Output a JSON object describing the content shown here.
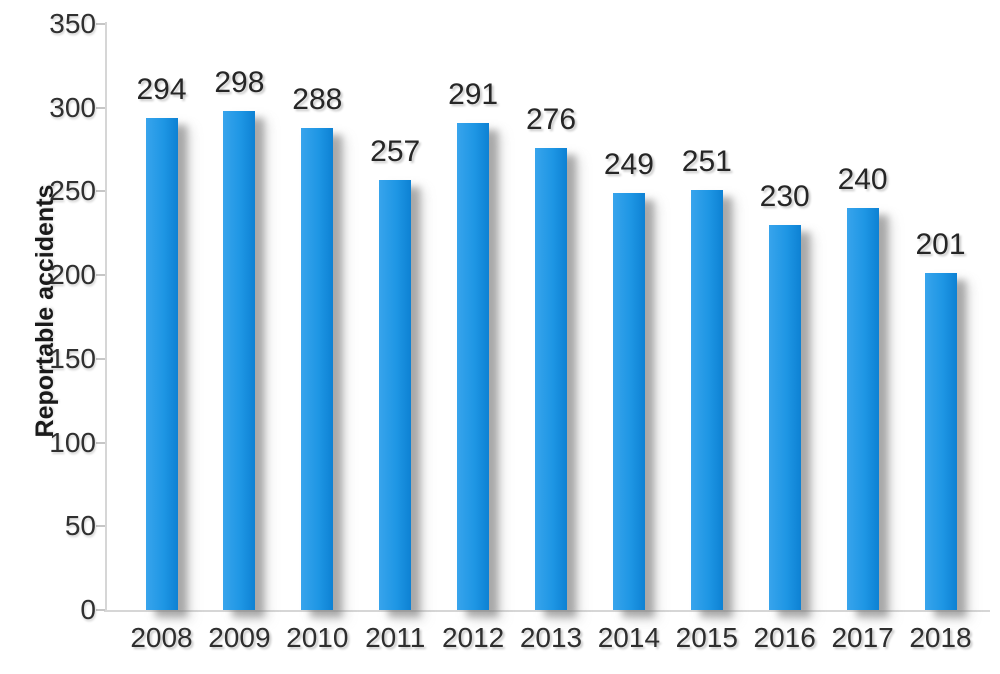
{
  "chart_data": {
    "type": "bar",
    "title": "",
    "xlabel": "",
    "ylabel": "Reportable accidents",
    "categories": [
      "2008",
      "2009",
      "2010",
      "2011",
      "2012",
      "2013",
      "2014",
      "2015",
      "2016",
      "2017",
      "2018"
    ],
    "values": [
      294,
      298,
      288,
      257,
      291,
      276,
      249,
      251,
      230,
      240,
      201
    ],
    "ylim": [
      0,
      350
    ],
    "ytick_step": 50,
    "ytick_labels": [
      "0",
      "50",
      "100",
      "150",
      "200",
      "250",
      "300",
      "350"
    ],
    "grid": false,
    "legend": false,
    "data_labels_shown": true,
    "bar_gradient": [
      "#38a4ec",
      "#1e96e4",
      "#0d81d3"
    ],
    "bar_shadow_color": "rgba(120,120,120,0.55)",
    "axis_line_color": "#d6d6d6",
    "tick_color": "#c6c6c6",
    "label_text_color": "#262626",
    "axis_text_color": "#303030"
  }
}
